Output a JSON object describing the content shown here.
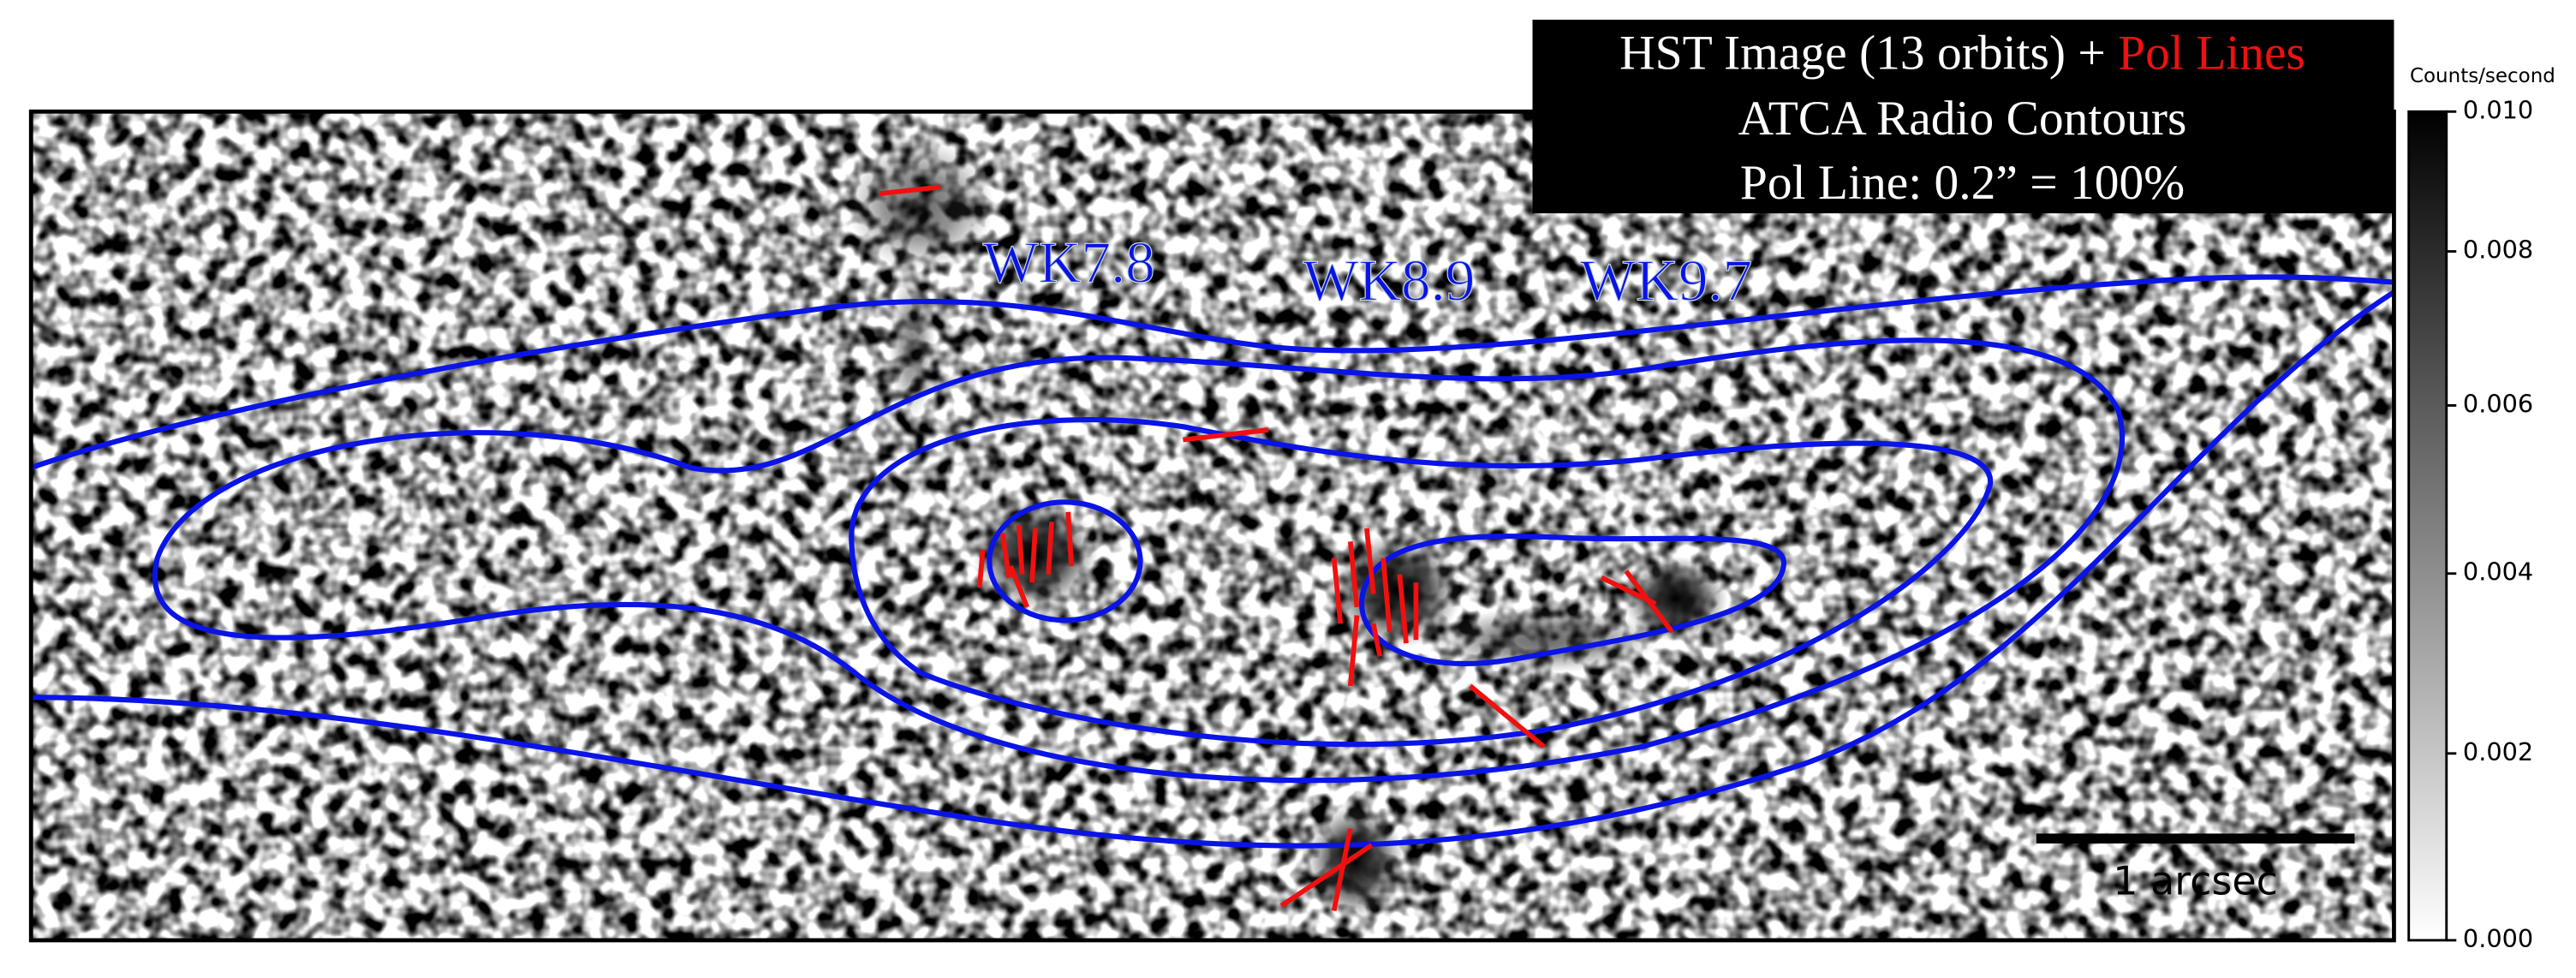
{
  "header": {
    "line1": {
      "text": "HST Image (13 orbits) + ",
      "highlight": "Pol Lines"
    },
    "line2": "ATCA Radio Contours",
    "line3": "Pol Line: 0.2” = 100%"
  },
  "labels": [
    "WK7.8",
    "WK8.9",
    "WK9.7"
  ],
  "scale_bar": "1 arcsec",
  "colorbar": {
    "label": "Counts/second",
    "lim": [
      0,
      0.01
    ],
    "stretch": "asinh",
    "ticks": [
      {
        "value": 0,
        "label": "0.000"
      },
      {
        "value": 0.002,
        "label": "0.002"
      },
      {
        "value": 0.004,
        "label": "0.004"
      },
      {
        "value": 0.006,
        "label": "0.006"
      },
      {
        "value": 0.008,
        "label": "0.008"
      },
      {
        "value": 0.01,
        "label": "0.010"
      }
    ]
  }
}
